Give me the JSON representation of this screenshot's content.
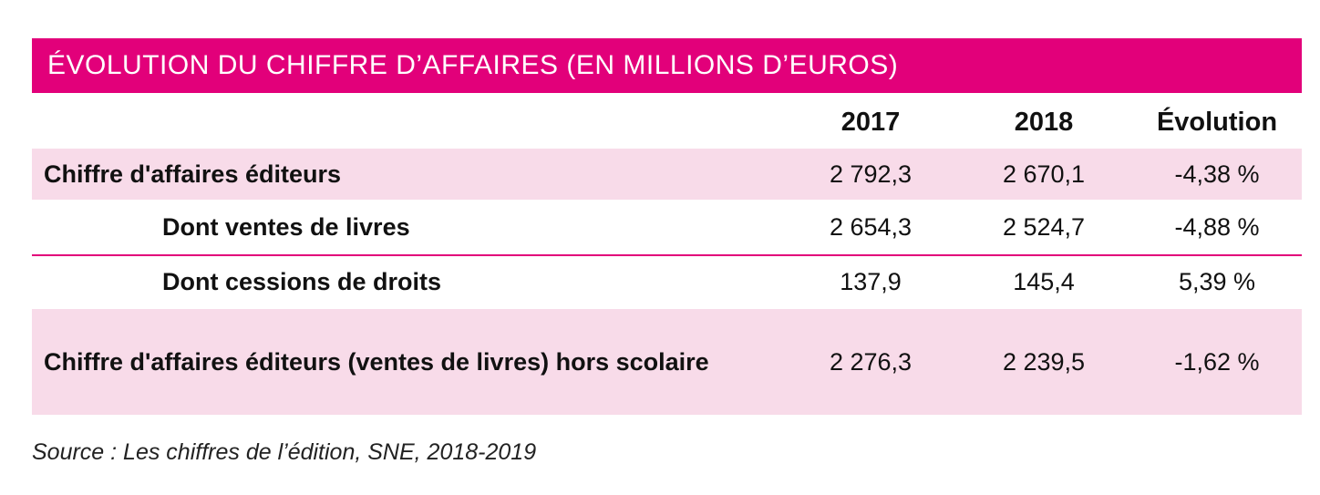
{
  "title": "ÉVOLUTION DU CHIFFRE D’AFFAIRES (EN MILLIONS D’EUROS)",
  "colors": {
    "accent": "#e2007a",
    "row_tint": "#f8dbe9"
  },
  "table": {
    "columns": [
      "",
      "2017",
      "2018",
      "Évolution"
    ],
    "rows": [
      {
        "label": "Chiffre d'affaires éditeurs",
        "v2017": "2 792,3",
        "v2018": "2 670,1",
        "evolution": "-4,38 %"
      },
      {
        "label": "Dont ventes de livres",
        "v2017": "2 654,3",
        "v2018": "2 524,7",
        "evolution": "-4,88 %"
      },
      {
        "label": "Dont cessions de droits",
        "v2017": "137,9",
        "v2018": "145,4",
        "evolution": "5,39 %"
      },
      {
        "label": "Chiffre d'affaires éditeurs (ventes de livres) hors scolaire",
        "v2017": "2 276,3",
        "v2018": "2 239,5",
        "evolution": "-1,62 %"
      }
    ]
  },
  "source": "Source : Les chiffres de l’édition, SNE, 2018-2019"
}
